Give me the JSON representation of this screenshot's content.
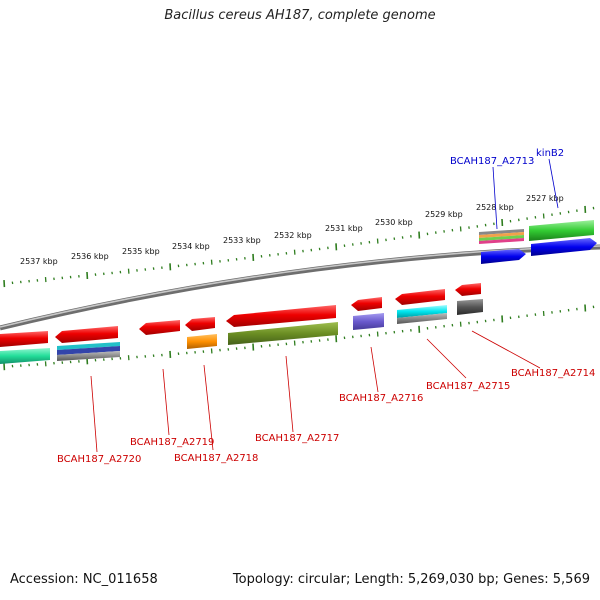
{
  "title": "Bacillus cereus AH187, complete genome",
  "footer": {
    "accession": "Accession: NC_011658",
    "summary": "Topology: circular; Length: 5,269,030 bp; Genes: 5,569"
  },
  "colors": {
    "backbone": "#8a8a8a",
    "tick": "#2f7d1f",
    "reverse_label": "#cc0000",
    "forward_label": "#0000cc"
  },
  "scale_labels": [
    "2537 kbp",
    "2536 kbp",
    "2535 kbp",
    "2534 kbp",
    "2533 kbp",
    "2532 kbp",
    "2531 kbp",
    "2530 kbp",
    "2529 kbp",
    "2528 kbp",
    "2527 kbp"
  ],
  "gene_labels": [
    {
      "text": "BCAH187_A2713",
      "color": "#0000cc"
    },
    {
      "text": "kinB2",
      "color": "#0000cc"
    },
    {
      "text": "BCAH187_A2714",
      "color": "#cc0000"
    },
    {
      "text": "BCAH187_A2715",
      "color": "#cc0000"
    },
    {
      "text": "BCAH187_A2716",
      "color": "#cc0000"
    },
    {
      "text": "BCAH187_A2717",
      "color": "#cc0000"
    },
    {
      "text": "BCAH187_A2718",
      "color": "#cc0000"
    },
    {
      "text": "BCAH187_A2719",
      "color": "#cc0000"
    },
    {
      "text": "BCAH187_A2720",
      "color": "#cc0000"
    }
  ]
}
